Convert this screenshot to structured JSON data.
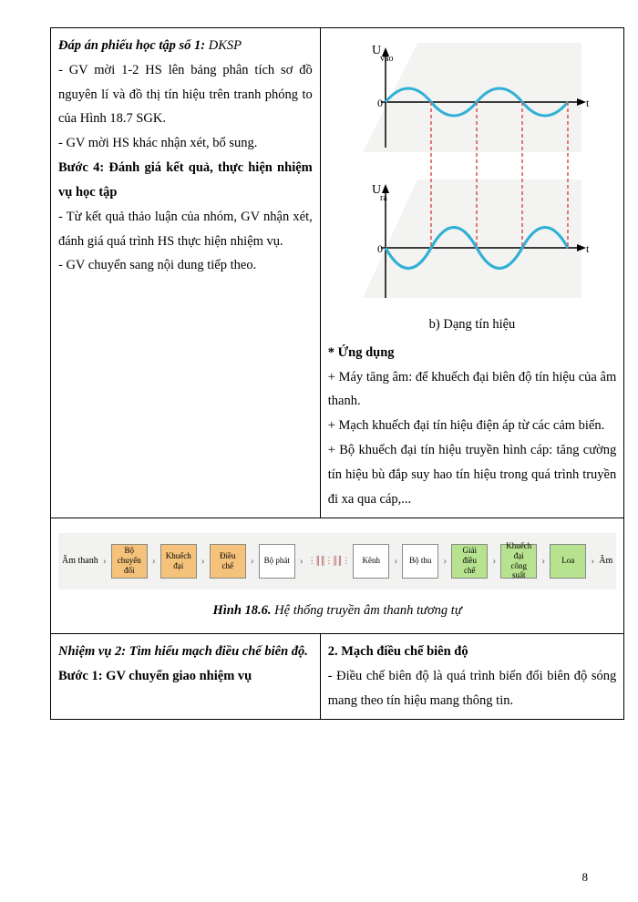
{
  "pageNumber": "8",
  "table1": {
    "left": {
      "line1a": "Đáp án phiếu học tập số 1:",
      "line1b": " DKSP",
      "line2": "- GV mời 1-2 HS lên bảng phân tích sơ đồ nguyên lí và đồ thị tín hiệu trên tranh phóng to của Hình 18.7 SGK.",
      "line3": "- GV mời HS khác nhận xét, bổ sung.",
      "line4": "Bước 4: Đánh giá kết quả, thực hiện nhiệm vụ học tập",
      "line5": "- Từ kết quả thảo luận của nhóm, GV nhận xét, đánh giá quá trình HS thực hiện nhiệm vụ.",
      "line6": "- GV chuyển sang nội dung tiếp theo."
    },
    "right": {
      "chartCaption": "b) Dạng tín hiệu",
      "appTitle": "* Ứng dụng",
      "app1": "+ Máy tăng âm: để khuếch đại biên độ tín hiệu của âm thanh.",
      "app2": "+ Mạch khuếch đại tín hiệu điện áp từ các cảm biến.",
      "app3": "+ Bộ khuếch đại tín hiệu truyền hình cáp: tăng cường tín hiệu bù đắp suy hao tín hiệu trong quá trình truyền đi xa qua cáp,..."
    },
    "chart": {
      "label_top": "Uvào",
      "label_bottom": "Ura",
      "axis_t": "t",
      "wave_color": "#31b0d5",
      "dash_color": "#d9534f",
      "bg_color": "#ffffff",
      "shadow_color": "#dcdcdc",
      "axis_color": "#000000",
      "wave_width": 3,
      "top_amplitude": 25,
      "bottom_amplitude": 40,
      "periods": 2.2
    }
  },
  "flow": {
    "caption_bold": "Hình 18.6.",
    "caption_rest": " Hệ thống truyền âm thanh tương tự",
    "in_label": "Âm thanh",
    "out_label": "Âm",
    "boxes": [
      {
        "label": "Bộ chuyển đổi",
        "color": "orange"
      },
      {
        "label": "Khuếch đại",
        "color": "orange"
      },
      {
        "label": "Điều chế",
        "color": "orange"
      },
      {
        "label": "Bộ phát",
        "color": "white"
      },
      {
        "label": "Kênh",
        "color": "white",
        "wave": true
      },
      {
        "label": "Bộ thu",
        "color": "white"
      },
      {
        "label": "Giải điều chế",
        "color": "green"
      },
      {
        "label": "Khuếch đại công suất",
        "color": "green"
      },
      {
        "label": "Loa",
        "color": "green"
      }
    ]
  },
  "table2": {
    "left": {
      "line1": "Nhiệm vụ 2: Tìm hiểu mạch điều chế biên độ.",
      "line2": "Bước 1: GV chuyển giao nhiệm vụ"
    },
    "right": {
      "line1": "2. Mạch điều chế biên độ",
      "line2": "- Điều chế biên độ là quá trình biến đổi biên độ sóng mang theo tín hiệu mang thông tin."
    }
  }
}
